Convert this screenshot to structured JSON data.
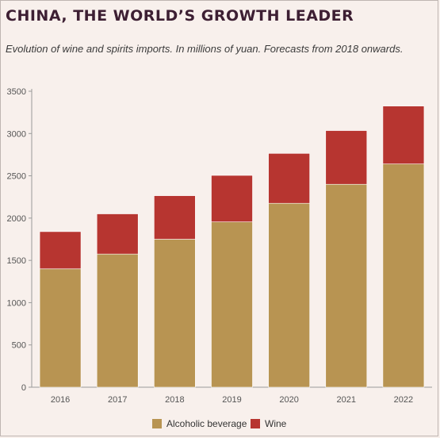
{
  "header": {
    "title": "CHINA, THE WORLD’S GROWTH LEADER",
    "subtitle": "Evolution of wine and spirits imports. In millions of yuan. Forecasts from 2018 onwards."
  },
  "chart_data": {
    "type": "bar",
    "stacked": true,
    "title": "CHINA, THE WORLD’S GROWTH LEADER",
    "subtitle": "Evolution of wine and spirits imports. In millions of yuan. Forecasts from 2018 onwards.",
    "xlabel": "",
    "ylabel": "",
    "categories": [
      "2016",
      "2017",
      "2018",
      "2019",
      "2020",
      "2021",
      "2022"
    ],
    "series": [
      {
        "name": "Alcoholic beverage",
        "color": "#b89452",
        "values": [
          1400,
          1575,
          1750,
          1955,
          2175,
          2400,
          2640
        ]
      },
      {
        "name": "Wine",
        "color": "#b73530",
        "values": [
          440,
          475,
          515,
          550,
          590,
          635,
          685
        ]
      }
    ],
    "ylim": [
      0,
      3500
    ],
    "yticks": [
      0,
      500,
      1000,
      1500,
      2000,
      2500,
      3000,
      3500
    ],
    "grid": false,
    "legend_position": "bottom-center"
  }
}
